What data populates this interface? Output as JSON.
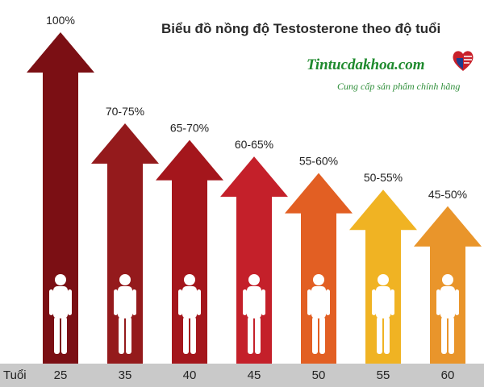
{
  "header": {
    "title": "Biểu đồ nồng độ Testosterone theo độ tuổi",
    "brand": "Tintucdakhoa.com",
    "tagline": "Cung cấp sản phẩm chính hãng"
  },
  "chart_data": {
    "type": "bar",
    "title": "Biểu đồ nồng độ Testosterone theo độ tuổi",
    "xlabel": "Tuổi",
    "ylabel": "",
    "categories": [
      "25",
      "35",
      "40",
      "45",
      "50",
      "55",
      "60"
    ],
    "values": [
      100,
      72.5,
      67.5,
      62.5,
      57.5,
      52.5,
      47.5
    ],
    "labels": [
      "100%",
      "70-75%",
      "65-70%",
      "60-65%",
      "55-60%",
      "50-55%",
      "45-50%"
    ],
    "colors": [
      "#7b0f14",
      "#941a1c",
      "#a4161c",
      "#c4202a",
      "#e25f23",
      "#f0b323",
      "#e9952b"
    ],
    "ylim": [
      0,
      100
    ],
    "grid": false,
    "legend": "none"
  }
}
